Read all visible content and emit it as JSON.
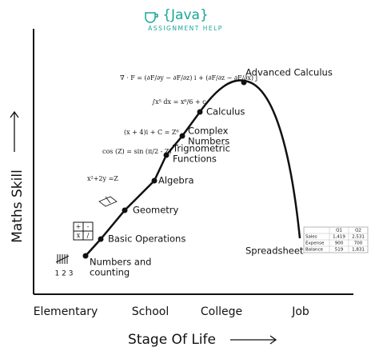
{
  "logo": {
    "brand": "{Java}",
    "sub": "ASSIGNMENT HELP"
  },
  "y_axis_label": "Maths Skill",
  "x_axis_label": "Stage Of Life",
  "stages": [
    "Elementary",
    "School",
    "College",
    "Job"
  ],
  "nodes": [
    {
      "label": [
        "Numbers and",
        "counting"
      ]
    },
    {
      "label": [
        "Basic Operations"
      ]
    },
    {
      "label": [
        "Geometry"
      ]
    },
    {
      "label": [
        "Algebra"
      ]
    },
    {
      "label": [
        "Trignometric",
        "Functions"
      ]
    },
    {
      "label": [
        "Complex",
        "Numbers"
      ]
    },
    {
      "label": [
        "Calculus"
      ]
    },
    {
      "label": [
        "Advanced Calculus"
      ]
    },
    {
      "label": [
        "Spreadsheet"
      ]
    }
  ],
  "formulas": [
    "x²+2y =Z",
    "cos (Z) = sin (π/2 - Z)",
    "(x + 4)i + C = Z⁶",
    "∫x⁵ dx = x⁶/6 + c",
    "∇ · F = (∂F/∂y − ∂F/∂z) i + (∂F/∂z − ∂F/∂x) j"
  ],
  "tally": "1 2 3",
  "ops": [
    "+",
    "-",
    "x",
    "/"
  ],
  "table": {
    "header": [
      "Q1",
      "Q2"
    ],
    "rows": [
      [
        "Sales",
        "1,419",
        "2,531"
      ],
      [
        "Expense",
        "900",
        "700"
      ],
      [
        "Balance",
        "519",
        "1,831"
      ]
    ]
  }
}
